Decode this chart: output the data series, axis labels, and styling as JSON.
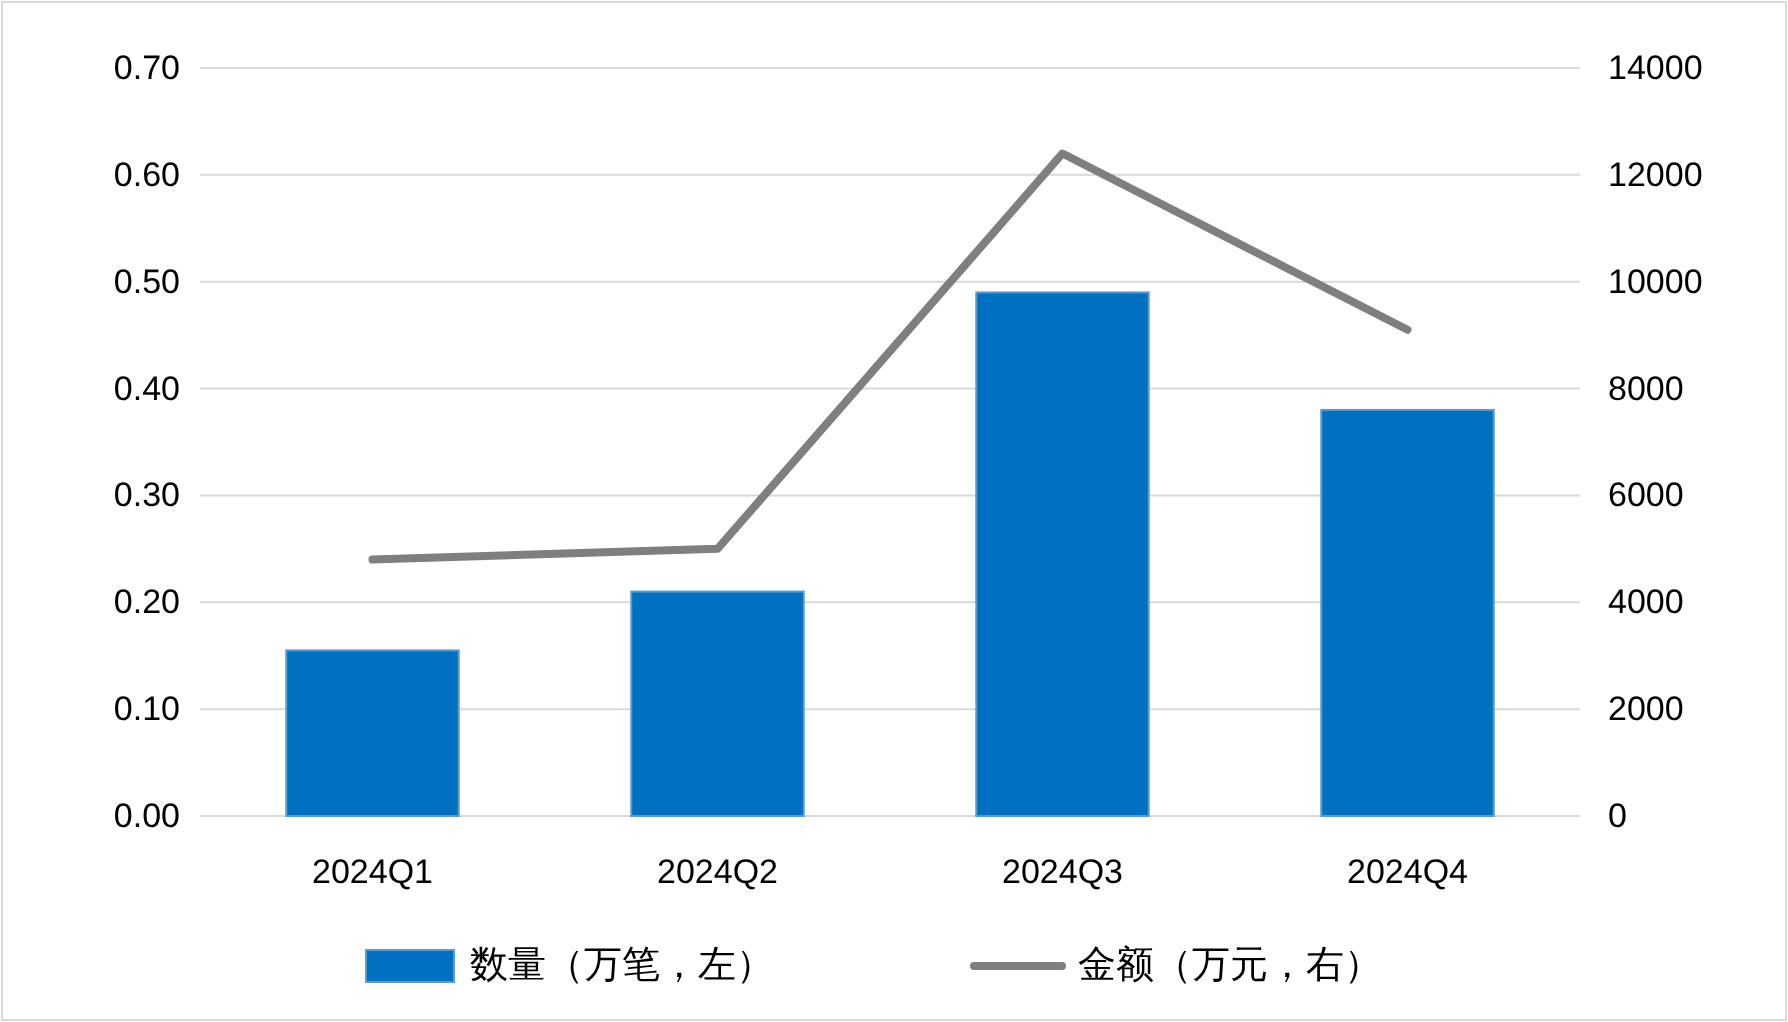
{
  "chart_data": {
    "type": "bar",
    "categories": [
      "2024Q1",
      "2024Q2",
      "2024Q3",
      "2024Q4"
    ],
    "series": [
      {
        "name": "数量（万笔，左）",
        "color": "#0070c0",
        "values": [
          0.155,
          0.21,
          0.49,
          0.38
        ]
      },
      {
        "name": "金额（万元，右）",
        "type": "line",
        "axis": "y2",
        "color": "#7f7f7f",
        "values": [
          4800,
          5000,
          12400,
          9100
        ]
      }
    ],
    "ylim": [
      0,
      0.7
    ],
    "yticks": [
      {
        "value": 0,
        "label": "0.00"
      },
      {
        "value": 0.1,
        "label": "0.10"
      },
      {
        "value": 0.2,
        "label": "0.20"
      },
      {
        "value": 0.3,
        "label": "0.30"
      },
      {
        "value": 0.4,
        "label": "0.40"
      },
      {
        "value": 0.5,
        "label": "0.50"
      },
      {
        "value": 0.6,
        "label": "0.60"
      },
      {
        "value": 0.7,
        "label": "0.70"
      }
    ],
    "y2lim": [
      0,
      14000
    ],
    "y2ticks": [
      0,
      2000,
      4000,
      6000,
      8000,
      10000,
      12000,
      14000
    ],
    "grid": "y",
    "legend": "bottom"
  }
}
